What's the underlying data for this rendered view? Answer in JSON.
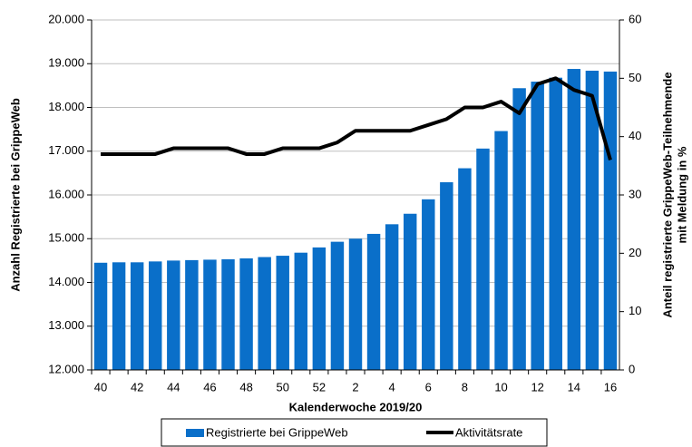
{
  "chart_data": {
    "type": "bar-line",
    "xlabel": "Kalenderwoche 2019/20",
    "ylabel": "Anzahl Registrierte bei GrippeWeb",
    "y2label": [
      "Anteil registrierte GrippeWeb-Teilnehmende",
      "mit Meldung in %"
    ],
    "categories": [
      "40",
      null,
      "42",
      null,
      "44",
      null,
      "46",
      null,
      "48",
      null,
      "50",
      null,
      "52",
      null,
      "2",
      null,
      "4",
      null,
      "6",
      null,
      "8",
      null,
      "10",
      null,
      "12",
      null,
      "14",
      null,
      "16"
    ],
    "series": [
      {
        "name": "Registrierte bei GrippeWeb",
        "type": "bar",
        "color": "#0a6fc9",
        "values": [
          14450,
          14460,
          14460,
          14480,
          14500,
          14510,
          14520,
          14530,
          14550,
          14580,
          14610,
          14680,
          14800,
          14930,
          15000,
          15110,
          15330,
          15570,
          15900,
          16290,
          16610,
          17060,
          17460,
          18440,
          18590,
          18680,
          18880,
          18840,
          18820
        ]
      },
      {
        "name": "Aktivitätsrate",
        "type": "line",
        "color": "#000000",
        "axis": "y2",
        "values": [
          37,
          37,
          37,
          37,
          38,
          38,
          38,
          38,
          37,
          37,
          38,
          38,
          38,
          39,
          41,
          41,
          41,
          41,
          42,
          43,
          45,
          45,
          46,
          44,
          49,
          50,
          48,
          47,
          36
        ]
      }
    ],
    "ylim": [
      12000,
      20000
    ],
    "yticks": [
      {
        "value": 12000,
        "label": "12.000"
      },
      {
        "value": 13000,
        "label": "13.000"
      },
      {
        "value": 14000,
        "label": "14.000"
      },
      {
        "value": 15000,
        "label": "15.000"
      },
      {
        "value": 16000,
        "label": "16.000"
      },
      {
        "value": 17000,
        "label": "17.000"
      },
      {
        "value": 18000,
        "label": "18.000"
      },
      {
        "value": 19000,
        "label": "19.000"
      },
      {
        "value": 20000,
        "label": "20.000"
      }
    ],
    "y2lim": [
      0,
      60
    ],
    "y2ticks": [
      0,
      10,
      20,
      30,
      40,
      50,
      60
    ],
    "grid": true,
    "legend": "bottom"
  }
}
